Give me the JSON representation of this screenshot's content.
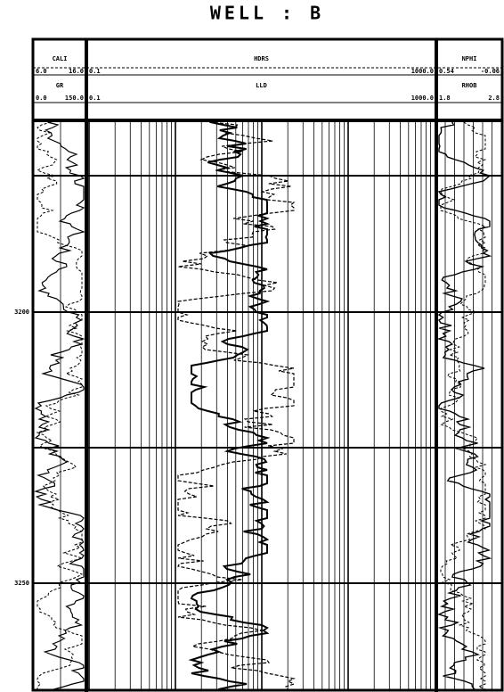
{
  "title": "WELL : B",
  "tracks": [
    {
      "curves": [
        {
          "name": "CALI",
          "min": "6.0",
          "max": "16.0"
        },
        {
          "name": "GR",
          "min": "0.0",
          "max": "150.0"
        }
      ]
    },
    {
      "curves": [
        {
          "name": "HDRS",
          "min": "0.1",
          "max": "1000.0"
        },
        {
          "name": "LLD",
          "min": "0.1",
          "max": "1000.0"
        }
      ]
    },
    {
      "curves": [
        {
          "name": "NPHI",
          "min": "0.54",
          "max": "-0.06"
        },
        {
          "name": "RHOB",
          "min": "1.8",
          "max": "2.8"
        }
      ]
    }
  ],
  "depths": [
    "3200",
    "3250"
  ]
}
